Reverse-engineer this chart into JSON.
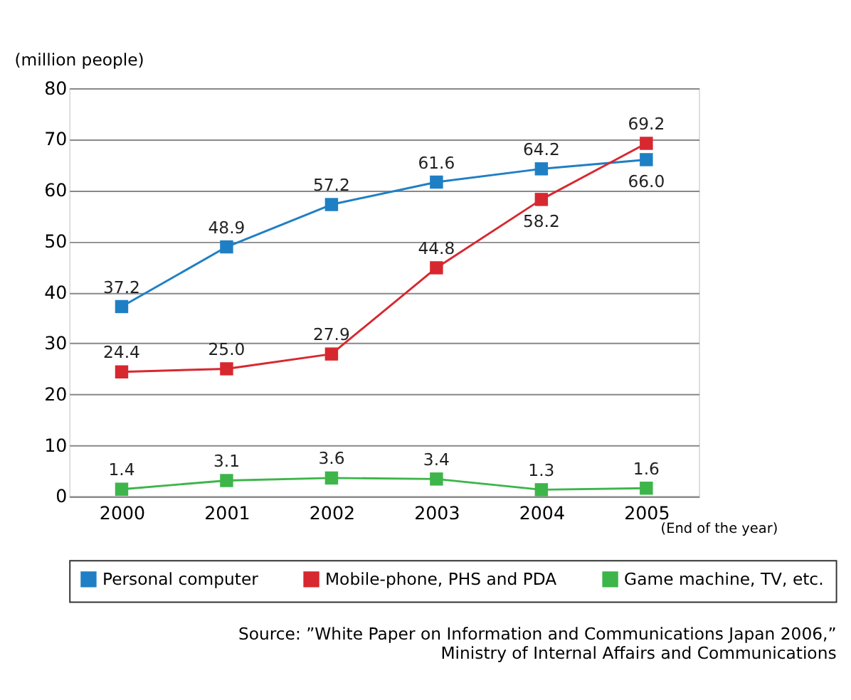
{
  "chart_data": {
    "type": "line",
    "ylabel": "(million people)",
    "xlabel": "(End of the year)",
    "categories": [
      "2000",
      "2001",
      "2002",
      "2003",
      "2004",
      "2005"
    ],
    "series": [
      {
        "name": "Personal computer",
        "color": "#1f7fc4",
        "values": [
          37.2,
          48.9,
          57.2,
          61.6,
          64.2,
          66.0
        ],
        "value_labels": [
          "37.2",
          "48.9",
          "57.2",
          "61.6",
          "64.2",
          "66.0"
        ]
      },
      {
        "name": "Mobile-phone, PHS and PDA",
        "color": "#d7282f",
        "values": [
          24.4,
          25.0,
          27.9,
          44.8,
          58.2,
          69.2
        ],
        "value_labels": [
          "24.4",
          "25.0",
          "27.9",
          "44.8",
          "58.2",
          "69.2"
        ]
      },
      {
        "name": "Game machine, TV, etc.",
        "color": "#3db54a",
        "values": [
          1.4,
          3.1,
          3.6,
          3.4,
          1.3,
          1.6
        ],
        "value_labels": [
          "1.4",
          "3.1",
          "3.6",
          "3.4",
          "1.3",
          "1.6"
        ]
      }
    ],
    "ylim": [
      0,
      80
    ],
    "yticks": [
      0,
      10,
      20,
      30,
      40,
      50,
      60,
      70,
      80
    ],
    "grid": "y",
    "legend": "bottom",
    "marker": "square",
    "data_labels": true,
    "annotations": [
      "Source: ”White Paper on Information and Communications Japan 2006,”",
      "Ministry of Internal Affairs and Communications"
    ]
  }
}
